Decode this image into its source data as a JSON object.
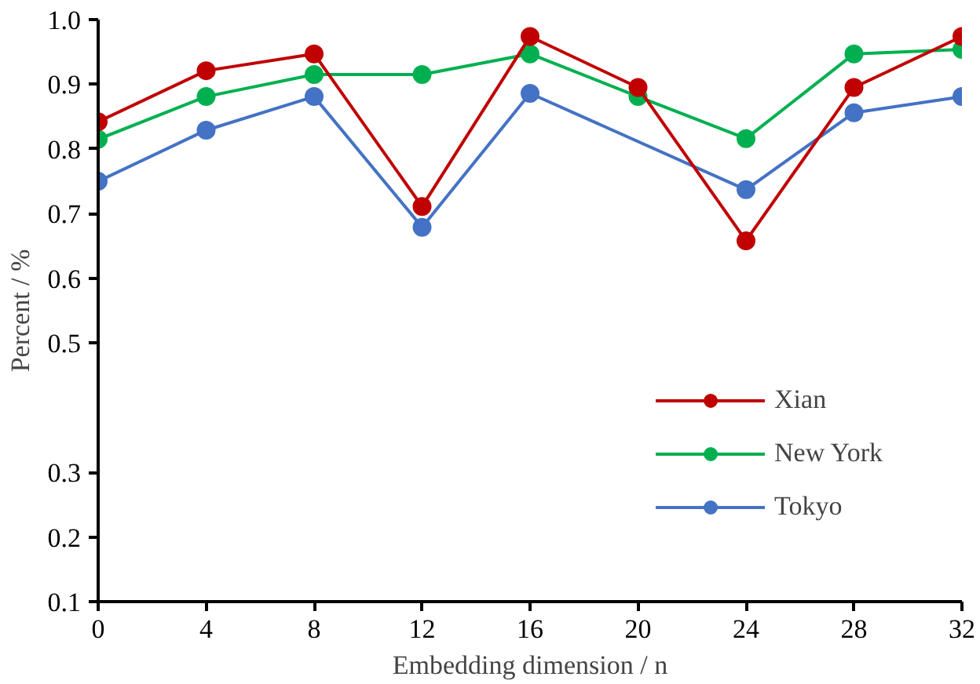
{
  "chart_data": {
    "type": "line",
    "xlabel": "Embedding dimension / n",
    "ylabel": "Percent / %",
    "x": [
      0,
      4,
      8,
      12,
      16,
      20,
      24,
      28,
      32
    ],
    "series": [
      {
        "name": "Xian",
        "color": "#c00000",
        "values": [
          0.842,
          0.921,
          0.947,
          0.711,
          0.974,
          0.895,
          0.658,
          0.895,
          0.974
        ]
      },
      {
        "name": "New York",
        "color": "#00b050",
        "values": [
          0.815,
          0.881,
          0.915,
          0.915,
          0.947,
          0.881,
          0.816,
          0.947,
          0.954
        ]
      },
      {
        "name": "Tokyo",
        "color": "#4472c4",
        "x": [
          0,
          4,
          8,
          12,
          16,
          24,
          28,
          32
        ],
        "values": [
          0.75,
          0.829,
          0.881,
          0.679,
          0.886,
          0.737,
          0.856,
          0.881
        ]
      }
    ],
    "xlim": [
      0,
      32
    ],
    "xticks": [
      0,
      4,
      8,
      12,
      16,
      20,
      24,
      28,
      32
    ],
    "ylim": [
      0.1,
      1.0
    ],
    "yticks": [
      0.1,
      0.2,
      0.3,
      0.5,
      0.6,
      0.7,
      0.8,
      0.9,
      {
        "value": 1.0,
        "label": "1.0"
      }
    ],
    "marker": "circle",
    "line_style": "solid",
    "legend": "bottom right",
    "grid": false
  }
}
